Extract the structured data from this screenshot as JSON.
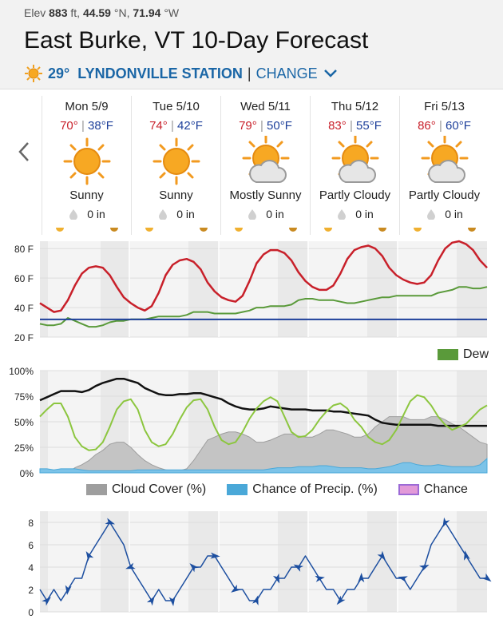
{
  "header": {
    "elev_prefix": "Elev",
    "elev_value": "883",
    "elev_unit": "ft,",
    "lat": "44.59",
    "lat_unit": "°N,",
    "lon": "71.94",
    "lon_unit": "°W",
    "title": "East Burke, VT 10-Day Forecast",
    "current_temp": "29°",
    "station": "LYNDONVILLE STATION",
    "separator": "|",
    "change_label": "CHANGE",
    "icons": {
      "current": "sun-icon",
      "dropdown": "chevron-down-icon"
    }
  },
  "nav": {
    "prev_icon": "chevron-left-icon"
  },
  "days": [
    {
      "name": "Mon 5/9",
      "high": "70°",
      "low": "38°F",
      "cond": "Sunny",
      "icon": "sun-icon",
      "precip": "0 in"
    },
    {
      "name": "Tue 5/10",
      "high": "74°",
      "low": "42°F",
      "cond": "Sunny",
      "icon": "sun-icon",
      "precip": "0 in"
    },
    {
      "name": "Wed 5/11",
      "high": "79°",
      "low": "50°F",
      "cond": "Mostly Sunny",
      "icon": "mostly-sunny-icon",
      "precip": "0 in"
    },
    {
      "name": "Thu 5/12",
      "high": "83°",
      "low": "55°F",
      "cond": "Partly Cloudy",
      "icon": "partly-cloudy-icon",
      "precip": "0 in"
    },
    {
      "name": "Fri 5/13",
      "high": "86°",
      "low": "60°F",
      "cond": "Partly Cloudy",
      "icon": "partly-cloudy-icon",
      "precip": "0 in"
    }
  ],
  "colors": {
    "temp": "#c8202a",
    "dew": "#5a9a3a",
    "freeze": "#1d3f9a",
    "humidity": "#8cc63f",
    "sky": "#111111",
    "cloud": "#bdbdbd",
    "precip": "#4aa8d8",
    "wind": "#1d4fa0"
  },
  "chart_data": [
    {
      "type": "line",
      "ylim": [
        20,
        85
      ],
      "yticks": [
        "80 F",
        "60 F",
        "40 F",
        "20 F"
      ],
      "ytick_values": [
        80,
        60,
        40,
        20
      ],
      "freeze_line": 32,
      "legend": [
        {
          "name": "Dew",
          "color": "#5a9a3a"
        }
      ],
      "series": [
        {
          "key": "temp",
          "color": "#c8202a",
          "values": [
            43,
            40,
            37,
            38,
            45,
            55,
            63,
            67,
            68,
            67,
            62,
            54,
            47,
            43,
            40,
            38,
            41,
            50,
            62,
            69,
            72,
            73,
            71,
            66,
            57,
            51,
            47,
            45,
            44,
            48,
            58,
            70,
            76,
            79,
            79,
            77,
            72,
            64,
            58,
            54,
            52,
            52,
            55,
            63,
            73,
            79,
            81,
            82,
            80,
            75,
            67,
            62,
            59,
            57,
            56,
            57,
            62,
            72,
            80,
            84,
            85,
            83,
            79,
            72,
            67
          ]
        },
        {
          "key": "dew",
          "color": "#5a9a3a",
          "values": [
            29,
            28,
            28,
            29,
            33,
            31,
            29,
            27,
            27,
            28,
            30,
            31,
            31,
            32,
            32,
            32,
            33,
            34,
            34,
            34,
            34,
            35,
            37,
            37,
            37,
            36,
            36,
            36,
            36,
            37,
            38,
            40,
            40,
            41,
            41,
            41,
            42,
            45,
            46,
            46,
            45,
            45,
            45,
            44,
            43,
            43,
            44,
            45,
            46,
            47,
            47,
            48,
            48,
            48,
            48,
            48,
            48,
            50,
            51,
            52,
            54,
            54,
            53,
            53,
            54
          ]
        }
      ]
    },
    {
      "type": "line",
      "ylim": [
        0,
        100
      ],
      "yticks": [
        "100%",
        "75%",
        "50%",
        "25%",
        "0%"
      ],
      "ytick_values": [
        100,
        75,
        50,
        25,
        0
      ],
      "legend": [
        {
          "name": "Cloud Cover (%)",
          "color": "#9e9e9e"
        },
        {
          "name": "Chance of Precip. (%)",
          "color": "#4aa8d8"
        },
        {
          "name": "Chance",
          "color": "#e29ad8"
        }
      ],
      "series": [
        {
          "key": "sky",
          "color": "#111111",
          "values": [
            71,
            74,
            77,
            80,
            80,
            80,
            79,
            81,
            85,
            88,
            90,
            92,
            92,
            90,
            88,
            83,
            80,
            77,
            76,
            76,
            77,
            77,
            78,
            78,
            76,
            74,
            72,
            68,
            65,
            63,
            62,
            62,
            63,
            65,
            64,
            63,
            62,
            62,
            62,
            61,
            61,
            61,
            60,
            60,
            59,
            58,
            57,
            56,
            52,
            49,
            48,
            47,
            47,
            47,
            47,
            47,
            47,
            46,
            46,
            46,
            46,
            46,
            46,
            46,
            46
          ]
        },
        {
          "key": "humidity",
          "color": "#8cc63f",
          "values": [
            55,
            62,
            68,
            68,
            55,
            35,
            26,
            22,
            23,
            30,
            45,
            62,
            70,
            72,
            62,
            42,
            30,
            26,
            28,
            38,
            52,
            64,
            71,
            72,
            62,
            45,
            32,
            28,
            30,
            40,
            53,
            63,
            70,
            74,
            70,
            55,
            40,
            35,
            36,
            42,
            52,
            60,
            66,
            68,
            63,
            52,
            45,
            35,
            30,
            28,
            32,
            42,
            56,
            70,
            76,
            74,
            66,
            55,
            47,
            42,
            45,
            48,
            55,
            62,
            66
          ]
        },
        {
          "key": "cloud",
          "color": "#bdbdbd",
          "values": [
            0,
            0,
            0,
            0,
            0,
            5,
            8,
            12,
            18,
            22,
            28,
            30,
            30,
            25,
            18,
            12,
            8,
            5,
            3,
            2,
            2,
            4,
            12,
            22,
            32,
            35,
            38,
            40,
            40,
            38,
            35,
            30,
            30,
            32,
            35,
            38,
            38,
            36,
            35,
            35,
            38,
            42,
            42,
            40,
            38,
            35,
            35,
            38,
            45,
            50,
            55,
            55,
            55,
            52,
            52,
            52,
            55,
            55,
            52,
            48,
            45,
            40,
            35,
            30,
            28
          ]
        },
        {
          "key": "precip",
          "color": "#4aa8d8",
          "values": [
            4,
            4,
            3,
            4,
            4,
            4,
            3,
            2,
            2,
            2,
            2,
            2,
            2,
            2,
            3,
            3,
            3,
            3,
            3,
            3,
            3,
            3,
            3,
            3,
            3,
            3,
            3,
            3,
            3,
            3,
            3,
            3,
            3,
            4,
            5,
            5,
            5,
            6,
            6,
            6,
            7,
            7,
            6,
            5,
            5,
            5,
            5,
            4,
            4,
            5,
            6,
            8,
            10,
            10,
            8,
            7,
            7,
            8,
            7,
            6,
            6,
            6,
            6,
            8,
            14
          ]
        }
      ]
    },
    {
      "type": "line",
      "ylim": [
        0,
        9
      ],
      "yticks": [
        "8",
        "6",
        "4",
        "2",
        "0"
      ],
      "ytick_values": [
        8,
        6,
        4,
        2,
        0
      ],
      "series": [
        {
          "key": "wind",
          "color": "#1d4fa0",
          "values": [
            2,
            1,
            2,
            1,
            2,
            3,
            3,
            5,
            6,
            7,
            8,
            7,
            6,
            4,
            3,
            2,
            1,
            2,
            1,
            1,
            2,
            3,
            4,
            4,
            5,
            5,
            4,
            3,
            2,
            2,
            1,
            1,
            2,
            2,
            3,
            3,
            4,
            4,
            5,
            4,
            3,
            2,
            2,
            1,
            2,
            2,
            3,
            3,
            4,
            5,
            4,
            3,
            3,
            2,
            3,
            4,
            6,
            7,
            8,
            7,
            6,
            5,
            4,
            3,
            3
          ]
        }
      ]
    }
  ]
}
